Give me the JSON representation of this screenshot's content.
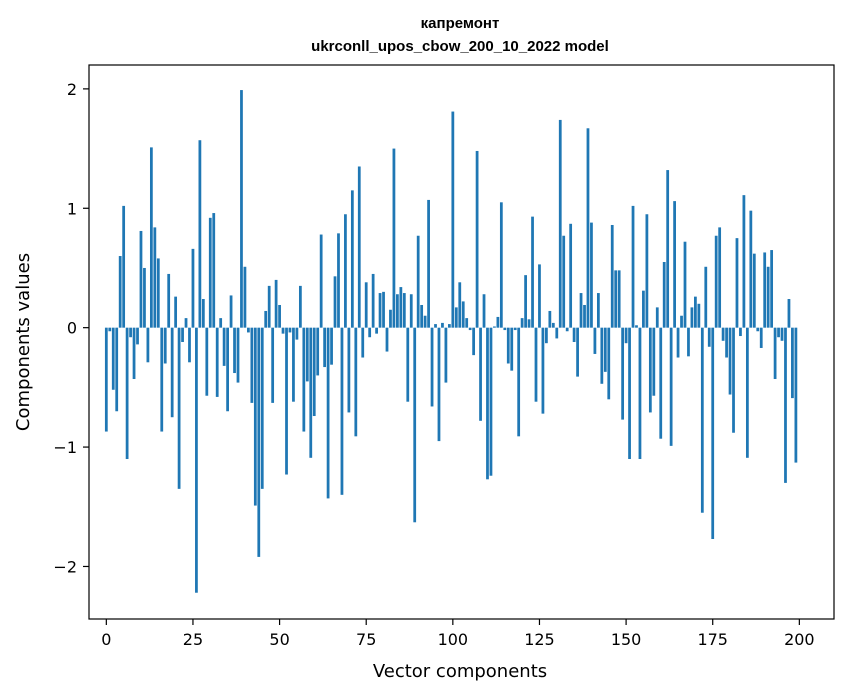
{
  "chart_data": {
    "type": "bar",
    "title": "капремонт",
    "subtitle": "ukrconll_upos_cbow_200_10_2022 model",
    "xlabel": "Vector components",
    "ylabel": "Components values",
    "xlim": [
      -5,
      210
    ],
    "ylim": [
      -2.44,
      2.2
    ],
    "xticks": [
      0,
      25,
      50,
      75,
      100,
      125,
      150,
      175,
      200
    ],
    "yticks": [
      -2,
      -1,
      0,
      1,
      2
    ],
    "grid": false,
    "legend": "none",
    "bar_color": "#1f77b4",
    "x": [
      0,
      1,
      2,
      3,
      4,
      5,
      6,
      7,
      8,
      9,
      10,
      11,
      12,
      13,
      14,
      15,
      16,
      17,
      18,
      19,
      20,
      21,
      22,
      23,
      24,
      25,
      26,
      27,
      28,
      29,
      30,
      31,
      32,
      33,
      34,
      35,
      36,
      37,
      38,
      39,
      40,
      41,
      42,
      43,
      44,
      45,
      46,
      47,
      48,
      49,
      50,
      51,
      52,
      53,
      54,
      55,
      56,
      57,
      58,
      59,
      60,
      61,
      62,
      63,
      64,
      65,
      66,
      67,
      68,
      69,
      70,
      71,
      72,
      73,
      74,
      75,
      76,
      77,
      78,
      79,
      80,
      81,
      82,
      83,
      84,
      85,
      86,
      87,
      88,
      89,
      90,
      91,
      92,
      93,
      94,
      95,
      96,
      97,
      98,
      99,
      100,
      101,
      102,
      103,
      104,
      105,
      106,
      107,
      108,
      109,
      110,
      111,
      112,
      113,
      114,
      115,
      116,
      117,
      118,
      119,
      120,
      121,
      122,
      123,
      124,
      125,
      126,
      127,
      128,
      129,
      130,
      131,
      132,
      133,
      134,
      135,
      136,
      137,
      138,
      139,
      140,
      141,
      142,
      143,
      144,
      145,
      146,
      147,
      148,
      149,
      150,
      151,
      152,
      153,
      154,
      155,
      156,
      157,
      158,
      159,
      160,
      161,
      162,
      163,
      164,
      165,
      166,
      167,
      168,
      169,
      170,
      171,
      172,
      173,
      174,
      175,
      176,
      177,
      178,
      179,
      180,
      181,
      182,
      183,
      184,
      185,
      186,
      187,
      188,
      189,
      190,
      191,
      192,
      193,
      194,
      195,
      196,
      197,
      198,
      199
    ],
    "values": [
      -0.87,
      -0.03,
      -0.52,
      -0.7,
      0.6,
      1.02,
      -1.1,
      -0.08,
      -0.43,
      -0.14,
      0.81,
      0.5,
      -0.29,
      1.51,
      0.84,
      0.58,
      -0.87,
      -0.3,
      0.45,
      -0.75,
      0.26,
      -1.35,
      -0.12,
      0.08,
      -0.29,
      0.66,
      -2.22,
      1.57,
      0.24,
      -0.57,
      0.92,
      0.96,
      -0.58,
      0.08,
      -0.32,
      -0.7,
      0.27,
      -0.38,
      -0.46,
      1.99,
      0.51,
      -0.04,
      -0.63,
      -1.49,
      -1.92,
      -1.35,
      0.14,
      0.35,
      -0.63,
      0.4,
      0.19,
      -0.05,
      -1.23,
      -0.04,
      -0.62,
      -0.1,
      0.35,
      -0.87,
      -0.45,
      -1.09,
      -0.74,
      -0.4,
      0.78,
      -0.33,
      -1.43,
      -0.31,
      0.43,
      0.79,
      -1.4,
      0.95,
      -0.71,
      1.15,
      -0.91,
      1.35,
      -0.25,
      0.38,
      -0.08,
      0.45,
      -0.05,
      0.29,
      0.3,
      -0.2,
      0.15,
      1.5,
      0.28,
      0.34,
      0.29,
      -0.62,
      0.28,
      -1.63,
      0.77,
      0.19,
      0.1,
      1.07,
      -0.66,
      0.03,
      -0.95,
      0.04,
      -0.46,
      0.03,
      1.81,
      0.17,
      0.38,
      0.22,
      0.08,
      -0.02,
      -0.23,
      1.48,
      -0.78,
      0.28,
      -1.27,
      -1.24,
      0.01,
      0.09,
      1.05,
      -0.02,
      -0.3,
      -0.36,
      -0.02,
      -0.91,
      0.08,
      0.44,
      0.07,
      0.93,
      -0.62,
      0.53,
      -0.72,
      -0.13,
      0.14,
      0.04,
      -0.09,
      1.74,
      0.77,
      -0.03,
      0.87,
      -0.12,
      -0.41,
      0.29,
      0.19,
      1.67,
      0.88,
      -0.22,
      0.29,
      -0.47,
      -0.37,
      -0.6,
      0.86,
      0.48,
      0.48,
      -0.77,
      -0.13,
      -1.1,
      1.02,
      0.02,
      -1.1,
      0.31,
      0.95,
      -0.71,
      -0.57,
      0.17,
      -0.93,
      0.55,
      1.32,
      -0.99,
      1.06,
      -0.25,
      0.1,
      0.72,
      -0.24,
      0.17,
      0.26,
      0.2,
      -1.55,
      0.51,
      -0.16,
      -1.77,
      0.77,
      0.84,
      -0.11,
      -0.25,
      -0.56,
      -0.88,
      0.75,
      -0.07,
      1.11,
      -1.09,
      0.98,
      0.62,
      -0.03,
      -0.17,
      0.63,
      0.51,
      0.65,
      -0.43,
      -0.08,
      -0.11,
      -1.3,
      0.24,
      -0.59,
      -1.13
    ]
  }
}
